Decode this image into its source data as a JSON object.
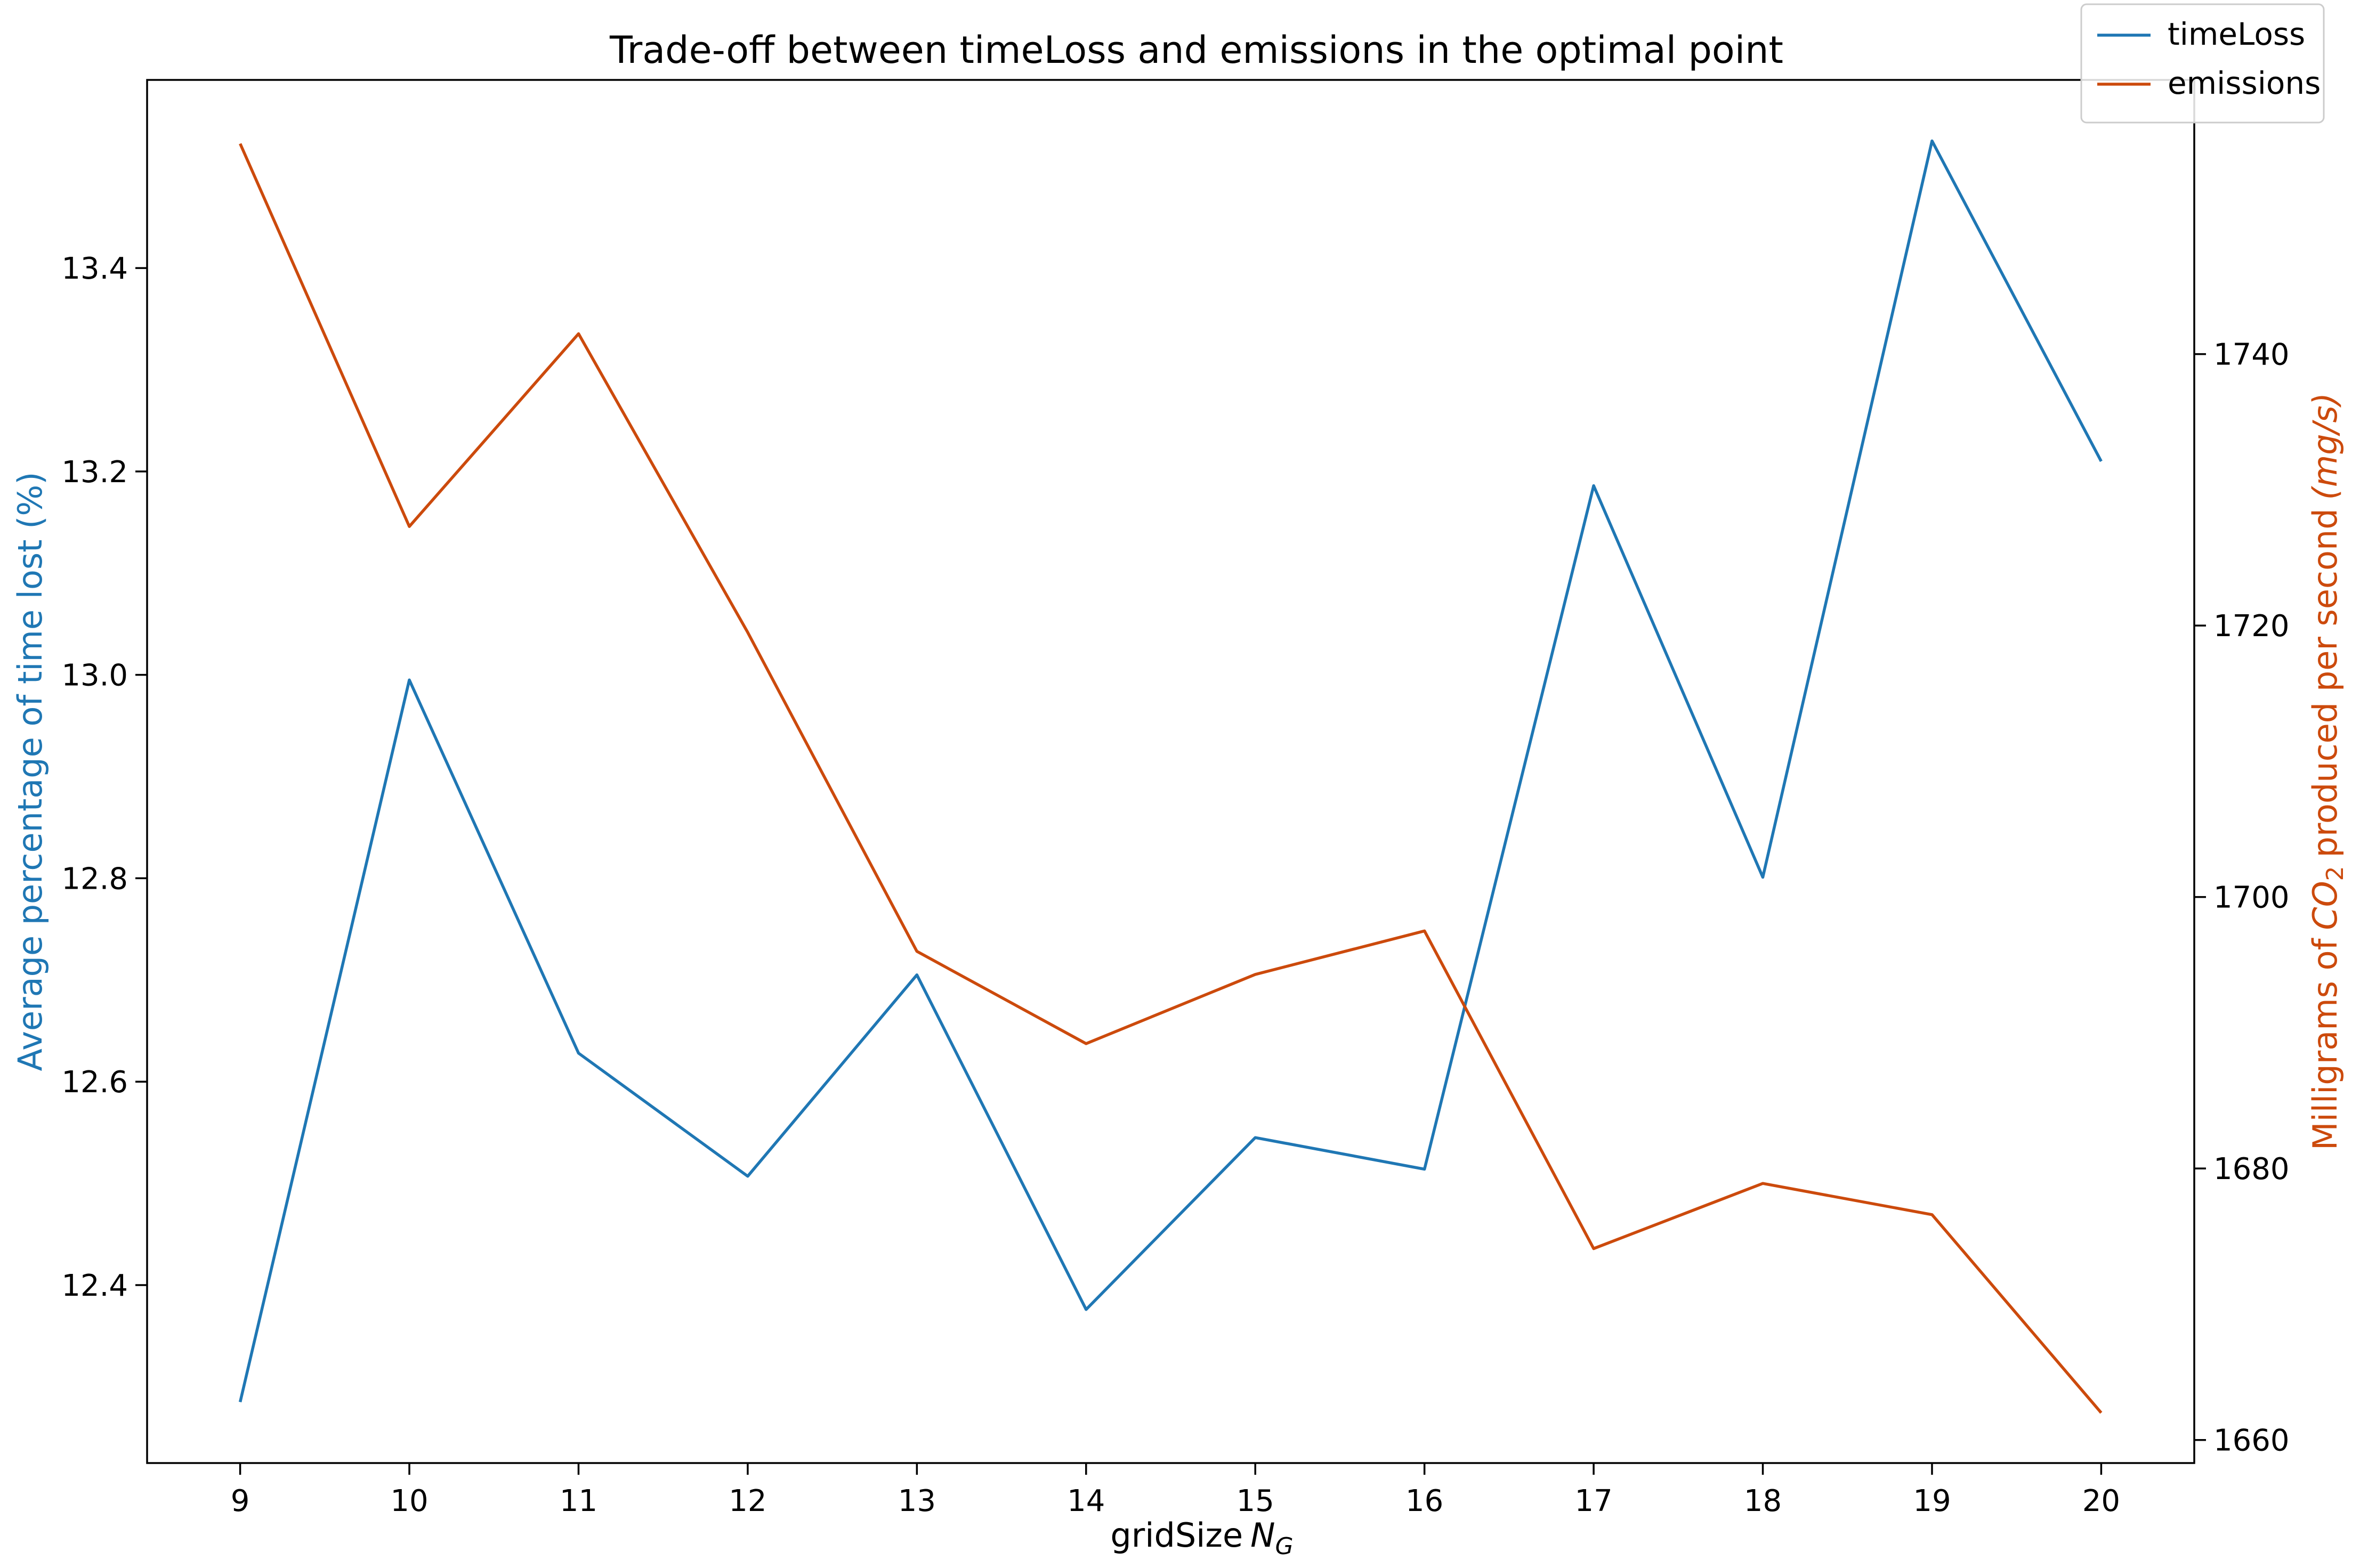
{
  "chart_data": {
    "type": "line",
    "title": "Trade-off between timeLoss and emissions in the optimal point",
    "xlabel": "gridSize",
    "xlabel_symbol": "N",
    "xlabel_subscript": "G",
    "x": [
      9,
      10,
      11,
      12,
      13,
      14,
      15,
      16,
      17,
      18,
      19,
      20
    ],
    "xlim": [
      8.45,
      20.55
    ],
    "left_axis": {
      "label": "Average percentage of time lost (%)",
      "color": "#1f77b4",
      "ylim": [
        12.225,
        13.585
      ],
      "ticks": [
        12.4,
        12.6,
        12.8,
        13.0,
        13.2,
        13.4
      ],
      "tick_labels": [
        "12.4",
        "12.6",
        "12.8",
        "13.0",
        "13.2",
        "13.4"
      ]
    },
    "right_axis": {
      "label_prefix": "Milligrams of",
      "label_species": "CO",
      "label_species_sub": "2",
      "label_middle": "produced per second",
      "label_unit": "(mg/s)",
      "color": "#cc4a0c",
      "ylim": [
        1658.3,
        1760.2
      ],
      "ticks": [
        1660,
        1680,
        1700,
        1720,
        1740
      ],
      "tick_labels": [
        "1660",
        "1680",
        "1700",
        "1720",
        "1740"
      ]
    },
    "series": [
      {
        "name": "timeLoss",
        "axis": "left",
        "color": "#1f77b4",
        "values": [
          12.285,
          12.995,
          12.628,
          12.507,
          12.705,
          12.376,
          12.545,
          12.514,
          13.186,
          12.801,
          13.525,
          13.21
        ]
      },
      {
        "name": "emissions",
        "axis": "right",
        "color": "#cc4a0c",
        "values": [
          1755.5,
          1727.3,
          1741.5,
          1719.5,
          1696.0,
          1689.2,
          1694.3,
          1697.5,
          1674.1,
          1678.9,
          1676.6,
          1662.0
        ]
      }
    ],
    "legend": {
      "position": "top-right",
      "entries": [
        "timeLoss",
        "emissions"
      ]
    },
    "grid": false
  }
}
